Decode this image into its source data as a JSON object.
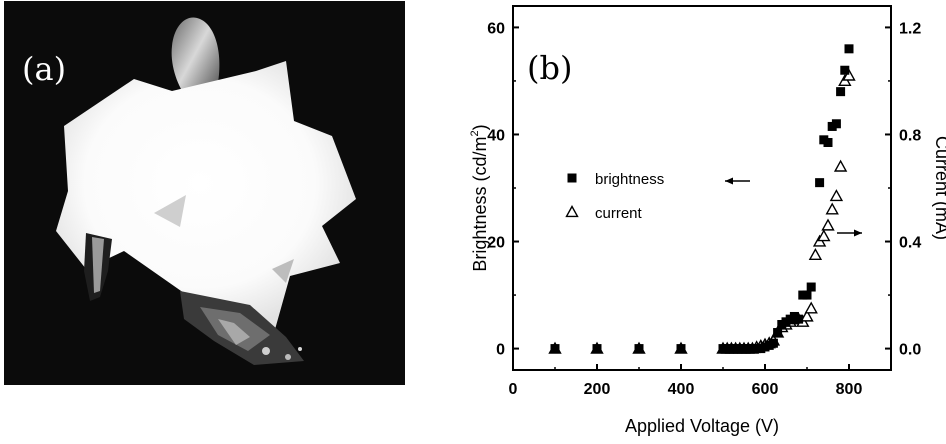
{
  "panel_a": {
    "label": "(a)"
  },
  "panel_b": {
    "label": "(b)"
  },
  "chart_data": {
    "type": "scatter",
    "xlabel": "Applied Voltage (V)",
    "ylabel_left": "Brightness (cd/m",
    "ylabel_left_sup": "2",
    "ylabel_left_close": ")",
    "ylabel_right": "Current (mA)",
    "xlim": [
      0,
      900
    ],
    "ylim_left": [
      -4,
      64
    ],
    "ylim_right": [
      -0.08,
      1.28
    ],
    "xticks": [
      0,
      200,
      400,
      600,
      800
    ],
    "xtick_labels": [
      "0",
      "200",
      "400",
      "600",
      "800"
    ],
    "yticks_left": [
      0,
      20,
      40,
      60
    ],
    "ytick_labels_left": [
      "0",
      "20",
      "40",
      "60"
    ],
    "yticks_right": [
      0.0,
      0.4,
      0.8,
      1.2
    ],
    "ytick_labels_right": [
      "0.0",
      "0.4",
      "0.8",
      "1.2"
    ],
    "legend_placement": "center-left",
    "series": [
      {
        "name": "brightness",
        "marker": "filled-square",
        "axis": "left",
        "color": "#000000",
        "x": [
          100,
          200,
          300,
          400,
          500,
          510,
          520,
          530,
          540,
          550,
          560,
          570,
          580,
          590,
          600,
          610,
          620,
          630,
          640,
          650,
          660,
          670,
          680,
          690,
          700,
          710,
          730,
          740,
          750,
          760,
          770,
          780,
          790,
          800
        ],
        "y": [
          0,
          0,
          0,
          0,
          0,
          0,
          0,
          0,
          0,
          0,
          0,
          0,
          0,
          0,
          0.3,
          0.6,
          1,
          3,
          4.5,
          5,
          5.5,
          6,
          5.5,
          10,
          10,
          11.5,
          31,
          39,
          38.5,
          41.5,
          42,
          48,
          52,
          56
        ]
      },
      {
        "name": "current",
        "marker": "open-triangle",
        "axis": "right",
        "color": "#000000",
        "x": [
          100,
          200,
          300,
          400,
          500,
          510,
          520,
          530,
          540,
          550,
          560,
          570,
          580,
          590,
          600,
          610,
          620,
          630,
          640,
          650,
          660,
          670,
          680,
          690,
          700,
          710,
          720,
          730,
          740,
          750,
          760,
          770,
          780,
          790,
          800
        ],
        "y": [
          0,
          0,
          0,
          0,
          0,
          0,
          0,
          0,
          0,
          0,
          0,
          0,
          0.005,
          0.01,
          0.015,
          0.02,
          0.03,
          0.06,
          0.08,
          0.09,
          0.1,
          0.11,
          0.11,
          0.1,
          0.12,
          0.15,
          0.35,
          0.4,
          0.42,
          0.46,
          0.52,
          0.57,
          0.68,
          1.0,
          1.02
        ]
      }
    ],
    "annotations": [
      "arrow-left-pointing-to-brightness-axis",
      "arrow-right-pointing-to-current-axis"
    ]
  }
}
